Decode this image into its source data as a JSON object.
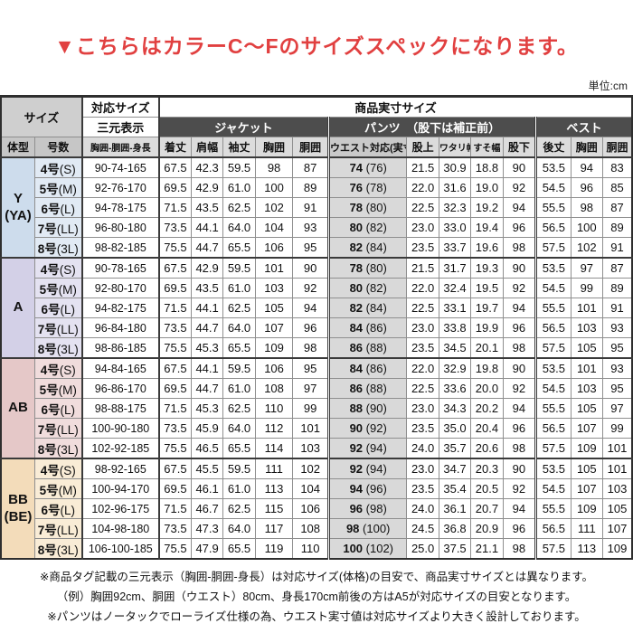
{
  "title": "▼こちらはカラーC〜Fのサイズスペックになります。",
  "unit_label": "単位:cm",
  "table": {
    "header": {
      "size_label": "サイズ",
      "taio_size": "対応サイズ",
      "sangen": "三元表示",
      "product_size": "商品実寸サイズ",
      "jacket": "ジャケット",
      "pants": "パンツ　（股下は補正前）",
      "vest": "ベスト",
      "col_taikei": "体型",
      "col_gosu": "号数",
      "col_sangen": "胸囲-胴囲-身長",
      "jacket_cols": [
        "着丈",
        "肩幅",
        "袖丈",
        "胸囲",
        "胴囲"
      ],
      "pants_cols": [
        "ウエスト対応(実寸)",
        "股上",
        "ワタリ幅",
        "すそ幅",
        "股下"
      ],
      "vest_cols": [
        "後丈",
        "胸囲",
        "胴囲"
      ]
    },
    "groups": [
      {
        "body_type": "Y\n(YA)",
        "color": "#cddcec",
        "color_light": "#e1eaf4",
        "rows": [
          {
            "gosu_num": "4号",
            "gosu_alpha": "(S)",
            "sangen": "90-74-165",
            "jacket": [
              "67.5",
              "42.3",
              "59.5",
              "98",
              "87"
            ],
            "waist": "74",
            "waist_actual": "(76)",
            "pants": [
              "21.5",
              "30.9",
              "18.8",
              "90"
            ],
            "vest": [
              "53.5",
              "94",
              "83"
            ]
          },
          {
            "gosu_num": "5号",
            "gosu_alpha": "(M)",
            "sangen": "92-76-170",
            "jacket": [
              "69.5",
              "42.9",
              "61.0",
              "100",
              "89"
            ],
            "waist": "76",
            "waist_actual": "(78)",
            "pants": [
              "22.0",
              "31.6",
              "19.0",
              "92"
            ],
            "vest": [
              "54.5",
              "96",
              "85"
            ]
          },
          {
            "gosu_num": "6号",
            "gosu_alpha": "(L)",
            "sangen": "94-78-175",
            "jacket": [
              "71.5",
              "43.5",
              "62.5",
              "102",
              "91"
            ],
            "waist": "78",
            "waist_actual": "(80)",
            "pants": [
              "22.5",
              "32.3",
              "19.2",
              "94"
            ],
            "vest": [
              "55.5",
              "98",
              "87"
            ]
          },
          {
            "gosu_num": "7号",
            "gosu_alpha": "(LL)",
            "sangen": "96-80-180",
            "jacket": [
              "73.5",
              "44.1",
              "64.0",
              "104",
              "93"
            ],
            "waist": "80",
            "waist_actual": "(82)",
            "pants": [
              "23.0",
              "33.0",
              "19.4",
              "96"
            ],
            "vest": [
              "56.5",
              "100",
              "89"
            ]
          },
          {
            "gosu_num": "8号",
            "gosu_alpha": "(3L)",
            "sangen": "98-82-185",
            "jacket": [
              "75.5",
              "44.7",
              "65.5",
              "106",
              "95"
            ],
            "waist": "82",
            "waist_actual": "(84)",
            "pants": [
              "23.5",
              "33.7",
              "19.6",
              "98"
            ],
            "vest": [
              "57.5",
              "102",
              "91"
            ]
          }
        ]
      },
      {
        "body_type": "A",
        "color": "#d3d0e7",
        "color_light": "#e4e2f1",
        "rows": [
          {
            "gosu_num": "4号",
            "gosu_alpha": "(S)",
            "sangen": "90-78-165",
            "jacket": [
              "67.5",
              "42.9",
              "59.5",
              "101",
              "90"
            ],
            "waist": "78",
            "waist_actual": "(80)",
            "pants": [
              "21.5",
              "31.7",
              "19.3",
              "90"
            ],
            "vest": [
              "53.5",
              "97",
              "87"
            ]
          },
          {
            "gosu_num": "5号",
            "gosu_alpha": "(M)",
            "sangen": "92-80-170",
            "jacket": [
              "69.5",
              "43.5",
              "61.0",
              "103",
              "92"
            ],
            "waist": "80",
            "waist_actual": "(82)",
            "pants": [
              "22.0",
              "32.4",
              "19.5",
              "92"
            ],
            "vest": [
              "54.5",
              "99",
              "89"
            ]
          },
          {
            "gosu_num": "6号",
            "gosu_alpha": "(L)",
            "sangen": "94-82-175",
            "jacket": [
              "71.5",
              "44.1",
              "62.5",
              "105",
              "94"
            ],
            "waist": "82",
            "waist_actual": "(84)",
            "pants": [
              "22.5",
              "33.1",
              "19.7",
              "94"
            ],
            "vest": [
              "55.5",
              "101",
              "91"
            ]
          },
          {
            "gosu_num": "7号",
            "gosu_alpha": "(LL)",
            "sangen": "96-84-180",
            "jacket": [
              "73.5",
              "44.7",
              "64.0",
              "107",
              "96"
            ],
            "waist": "84",
            "waist_actual": "(86)",
            "pants": [
              "23.0",
              "33.8",
              "19.9",
              "96"
            ],
            "vest": [
              "56.5",
              "103",
              "93"
            ]
          },
          {
            "gosu_num": "8号",
            "gosu_alpha": "(3L)",
            "sangen": "98-86-185",
            "jacket": [
              "75.5",
              "45.3",
              "65.5",
              "109",
              "98"
            ],
            "waist": "86",
            "waist_actual": "(88)",
            "pants": [
              "23.5",
              "34.5",
              "20.1",
              "98"
            ],
            "vest": [
              "57.5",
              "105",
              "95"
            ]
          }
        ]
      },
      {
        "body_type": "AB",
        "color": "#e5c8c8",
        "color_light": "#f0dcdc",
        "rows": [
          {
            "gosu_num": "4号",
            "gosu_alpha": "(S)",
            "sangen": "94-84-165",
            "jacket": [
              "67.5",
              "44.1",
              "59.5",
              "106",
              "95"
            ],
            "waist": "84",
            "waist_actual": "(86)",
            "pants": [
              "22.0",
              "32.9",
              "19.8",
              "90"
            ],
            "vest": [
              "53.5",
              "101",
              "93"
            ]
          },
          {
            "gosu_num": "5号",
            "gosu_alpha": "(M)",
            "sangen": "96-86-170",
            "jacket": [
              "69.5",
              "44.7",
              "61.0",
              "108",
              "97"
            ],
            "waist": "86",
            "waist_actual": "(88)",
            "pants": [
              "22.5",
              "33.6",
              "20.0",
              "92"
            ],
            "vest": [
              "54.5",
              "103",
              "95"
            ]
          },
          {
            "gosu_num": "6号",
            "gosu_alpha": "(L)",
            "sangen": "98-88-175",
            "jacket": [
              "71.5",
              "45.3",
              "62.5",
              "110",
              "99"
            ],
            "waist": "88",
            "waist_actual": "(90)",
            "pants": [
              "23.0",
              "34.3",
              "20.2",
              "94"
            ],
            "vest": [
              "55.5",
              "105",
              "97"
            ]
          },
          {
            "gosu_num": "7号",
            "gosu_alpha": "(LL)",
            "sangen": "100-90-180",
            "jacket": [
              "73.5",
              "45.9",
              "64.0",
              "112",
              "101"
            ],
            "waist": "90",
            "waist_actual": "(92)",
            "pants": [
              "23.5",
              "35.0",
              "20.4",
              "96"
            ],
            "vest": [
              "56.5",
              "107",
              "99"
            ]
          },
          {
            "gosu_num": "8号",
            "gosu_alpha": "(3L)",
            "sangen": "102-92-185",
            "jacket": [
              "75.5",
              "46.5",
              "65.5",
              "114",
              "103"
            ],
            "waist": "92",
            "waist_actual": "(94)",
            "pants": [
              "24.0",
              "35.7",
              "20.6",
              "98"
            ],
            "vest": [
              "57.5",
              "109",
              "101"
            ]
          }
        ]
      },
      {
        "body_type": "BB\n(BE)",
        "color": "#f3dcba",
        "color_light": "#f9ecd6",
        "rows": [
          {
            "gosu_num": "4号",
            "gosu_alpha": "(S)",
            "sangen": "98-92-165",
            "jacket": [
              "67.5",
              "45.5",
              "59.5",
              "111",
              "102"
            ],
            "waist": "92",
            "waist_actual": "(94)",
            "pants": [
              "23.0",
              "34.7",
              "20.3",
              "90"
            ],
            "vest": [
              "53.5",
              "105",
              "101"
            ]
          },
          {
            "gosu_num": "5号",
            "gosu_alpha": "(M)",
            "sangen": "100-94-170",
            "jacket": [
              "69.5",
              "46.1",
              "61.0",
              "113",
              "104"
            ],
            "waist": "94",
            "waist_actual": "(96)",
            "pants": [
              "23.5",
              "35.4",
              "20.5",
              "92"
            ],
            "vest": [
              "54.5",
              "107",
              "103"
            ]
          },
          {
            "gosu_num": "6号",
            "gosu_alpha": "(L)",
            "sangen": "102-96-175",
            "jacket": [
              "71.5",
              "46.7",
              "62.5",
              "115",
              "106"
            ],
            "waist": "96",
            "waist_actual": "(98)",
            "pants": [
              "24.0",
              "36.1",
              "20.7",
              "94"
            ],
            "vest": [
              "55.5",
              "109",
              "105"
            ]
          },
          {
            "gosu_num": "7号",
            "gosu_alpha": "(LL)",
            "sangen": "104-98-180",
            "jacket": [
              "73.5",
              "47.3",
              "64.0",
              "117",
              "108"
            ],
            "waist": "98",
            "waist_actual": "(100)",
            "pants": [
              "24.5",
              "36.8",
              "20.9",
              "96"
            ],
            "vest": [
              "56.5",
              "111",
              "107"
            ]
          },
          {
            "gosu_num": "8号",
            "gosu_alpha": "(3L)",
            "sangen": "106-100-185",
            "jacket": [
              "75.5",
              "47.9",
              "65.5",
              "119",
              "110"
            ],
            "waist": "100",
            "waist_actual": "(102)",
            "pants": [
              "25.0",
              "37.5",
              "21.1",
              "98"
            ],
            "vest": [
              "57.5",
              "113",
              "109"
            ]
          }
        ]
      }
    ]
  },
  "notes": [
    "※商品タグ記載の三元表示（胸囲-胴囲-身長）は対応サイズ(体格)の目安で、商品実寸サイズとは異なります。",
    "（例）胸囲92cm、胴囲（ウエスト）80cm、身長170cm前後の方はA5が対応サイズの目安となります。",
    "※パンツはノータックでローライズ仕様の為、ウエスト実寸値は対応サイズより大きく設計しております。"
  ],
  "colors": {
    "title_red": "#e14040",
    "section_header_dark": "#4d4d4d",
    "header_gray": "#cfcfcf",
    "waist_col_gray": "#d9d9d9"
  }
}
